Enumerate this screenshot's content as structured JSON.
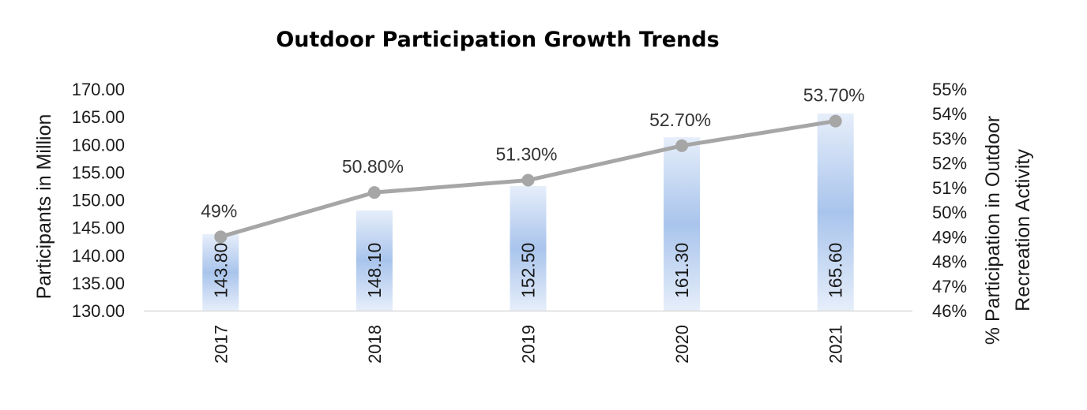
{
  "chart_data": {
    "type": "bar",
    "title": "Outdoor Participation Growth Trends",
    "categories": [
      "2017",
      "2018",
      "2019",
      "2020",
      "2021"
    ],
    "series": [
      {
        "type": "bar",
        "axis": "left",
        "values": [
          143.8,
          148.1,
          152.5,
          161.3,
          165.6
        ],
        "labels": [
          "143.80",
          "148.10",
          "152.50",
          "161.30",
          "165.60"
        ]
      },
      {
        "type": "line",
        "axis": "right",
        "values": [
          49.0,
          50.8,
          51.3,
          52.7,
          53.7
        ],
        "labels": [
          "49%",
          "50.80%",
          "51.30%",
          "52.70%",
          "53.70%"
        ]
      }
    ],
    "ylabel": "Participants in Million",
    "y2label_lines": [
      "% Participation in Outdoor",
      "Recreation Activity"
    ],
    "ylim": [
      130,
      170
    ],
    "y2lim": [
      46,
      55
    ],
    "yticks": [
      "130.00",
      "135.00",
      "140.00",
      "145.00",
      "150.00",
      "155.00",
      "160.00",
      "165.00",
      "170.00"
    ],
    "y2ticks": [
      "46%",
      "47%",
      "48%",
      "49%",
      "50%",
      "51%",
      "52%",
      "53%",
      "54%",
      "55%"
    ],
    "grid": false,
    "legend": "none",
    "colors": {
      "bar_center": "#9fbde8",
      "bar_edge": "#e6eefa",
      "line": "#a6a6a6",
      "axis": "#d9d9d9"
    }
  }
}
